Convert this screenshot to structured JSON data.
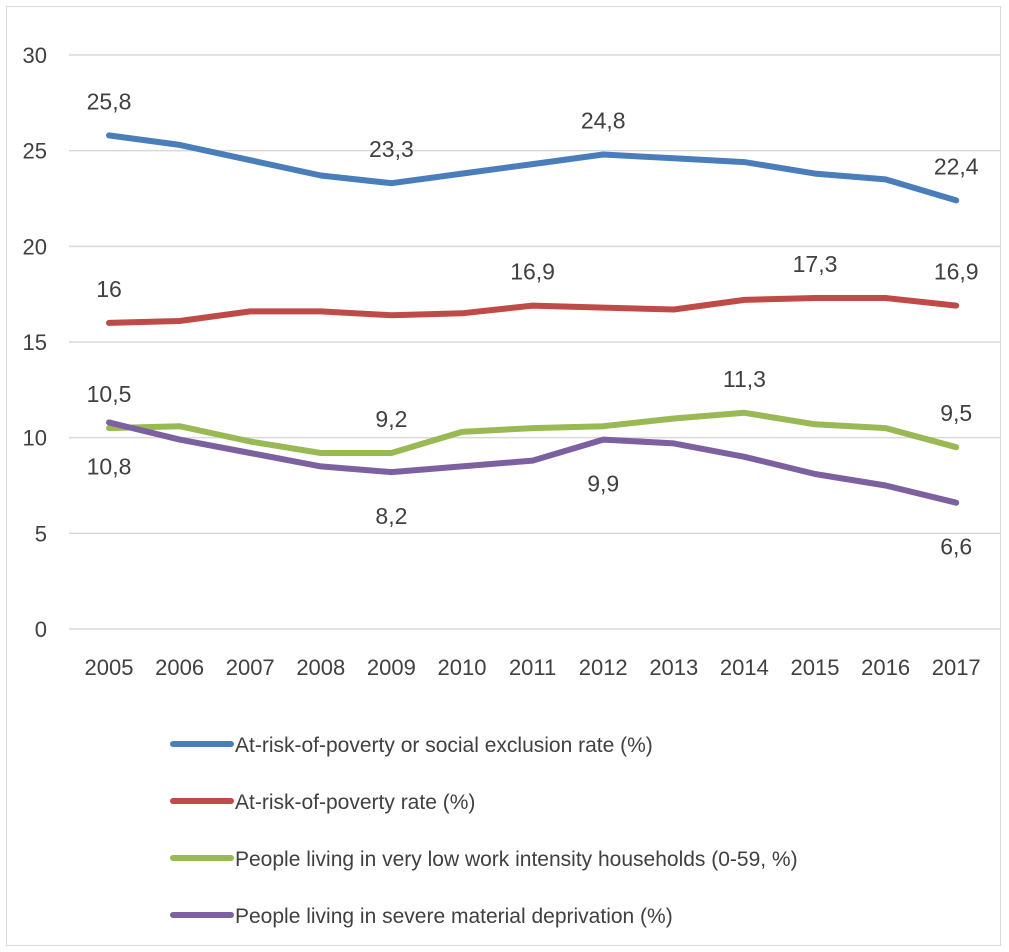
{
  "chart_data": {
    "type": "line",
    "title": "",
    "xlabel": "",
    "ylabel": "",
    "ylim": [
      0,
      30
    ],
    "y_ticks": [
      "0",
      "5",
      "10",
      "15",
      "20",
      "25",
      "30"
    ],
    "grid": "horizontal",
    "legend_placement": "bottom",
    "x": [
      "2005",
      "2006",
      "2007",
      "2008",
      "2009",
      "2010",
      "2011",
      "2012",
      "2013",
      "2014",
      "2015",
      "2016",
      "2017"
    ],
    "series": [
      {
        "name": "At-risk-of-poverty or social exclusion rate (%)",
        "color": "#4a7ebb",
        "values": [
          25.8,
          25.3,
          24.5,
          23.7,
          23.3,
          23.8,
          24.3,
          24.8,
          24.6,
          24.4,
          23.8,
          23.5,
          22.4
        ],
        "labels": [
          {
            "index": 0,
            "text": "25,8",
            "pos": "above"
          },
          {
            "index": 4,
            "text": "23,3",
            "pos": "above"
          },
          {
            "index": 7,
            "text": "24,8",
            "pos": "above"
          },
          {
            "index": 12,
            "text": "22,4",
            "pos": "above"
          }
        ]
      },
      {
        "name": "At-risk-of-poverty rate (%)",
        "color": "#be4b48",
        "values": [
          16.0,
          16.1,
          16.6,
          16.6,
          16.4,
          16.5,
          16.9,
          16.8,
          16.7,
          17.2,
          17.3,
          17.3,
          16.9
        ],
        "labels": [
          {
            "index": 0,
            "text": "16",
            "pos": "above"
          },
          {
            "index": 6,
            "text": "16,9",
            "pos": "above"
          },
          {
            "index": 10,
            "text": "17,3",
            "pos": "above"
          },
          {
            "index": 12,
            "text": "16,9",
            "pos": "above"
          }
        ]
      },
      {
        "name": "People living in very low work intensity households (0-59, %)",
        "color": "#98b954",
        "values": [
          10.5,
          10.6,
          9.8,
          9.2,
          9.2,
          10.3,
          10.5,
          10.6,
          11.0,
          11.3,
          10.7,
          10.5,
          9.5
        ],
        "labels": [
          {
            "index": 0,
            "text": "10,5",
            "pos": "above"
          },
          {
            "index": 4,
            "text": "9,2",
            "pos": "above"
          },
          {
            "index": 9,
            "text": "11,3",
            "pos": "above"
          },
          {
            "index": 12,
            "text": "9,5",
            "pos": "above"
          }
        ]
      },
      {
        "name": "People living in severe material deprivation (%)",
        "color": "#7d60a0",
        "values": [
          10.8,
          9.9,
          9.2,
          8.5,
          8.2,
          8.5,
          8.8,
          9.9,
          9.7,
          9.0,
          8.1,
          7.5,
          6.6
        ],
        "labels": [
          {
            "index": 0,
            "text": "10,8",
            "pos": "below"
          },
          {
            "index": 4,
            "text": "8,2",
            "pos": "below"
          },
          {
            "index": 7,
            "text": "9,9",
            "pos": "below"
          },
          {
            "index": 12,
            "text": "6,6",
            "pos": "below"
          }
        ]
      }
    ]
  }
}
